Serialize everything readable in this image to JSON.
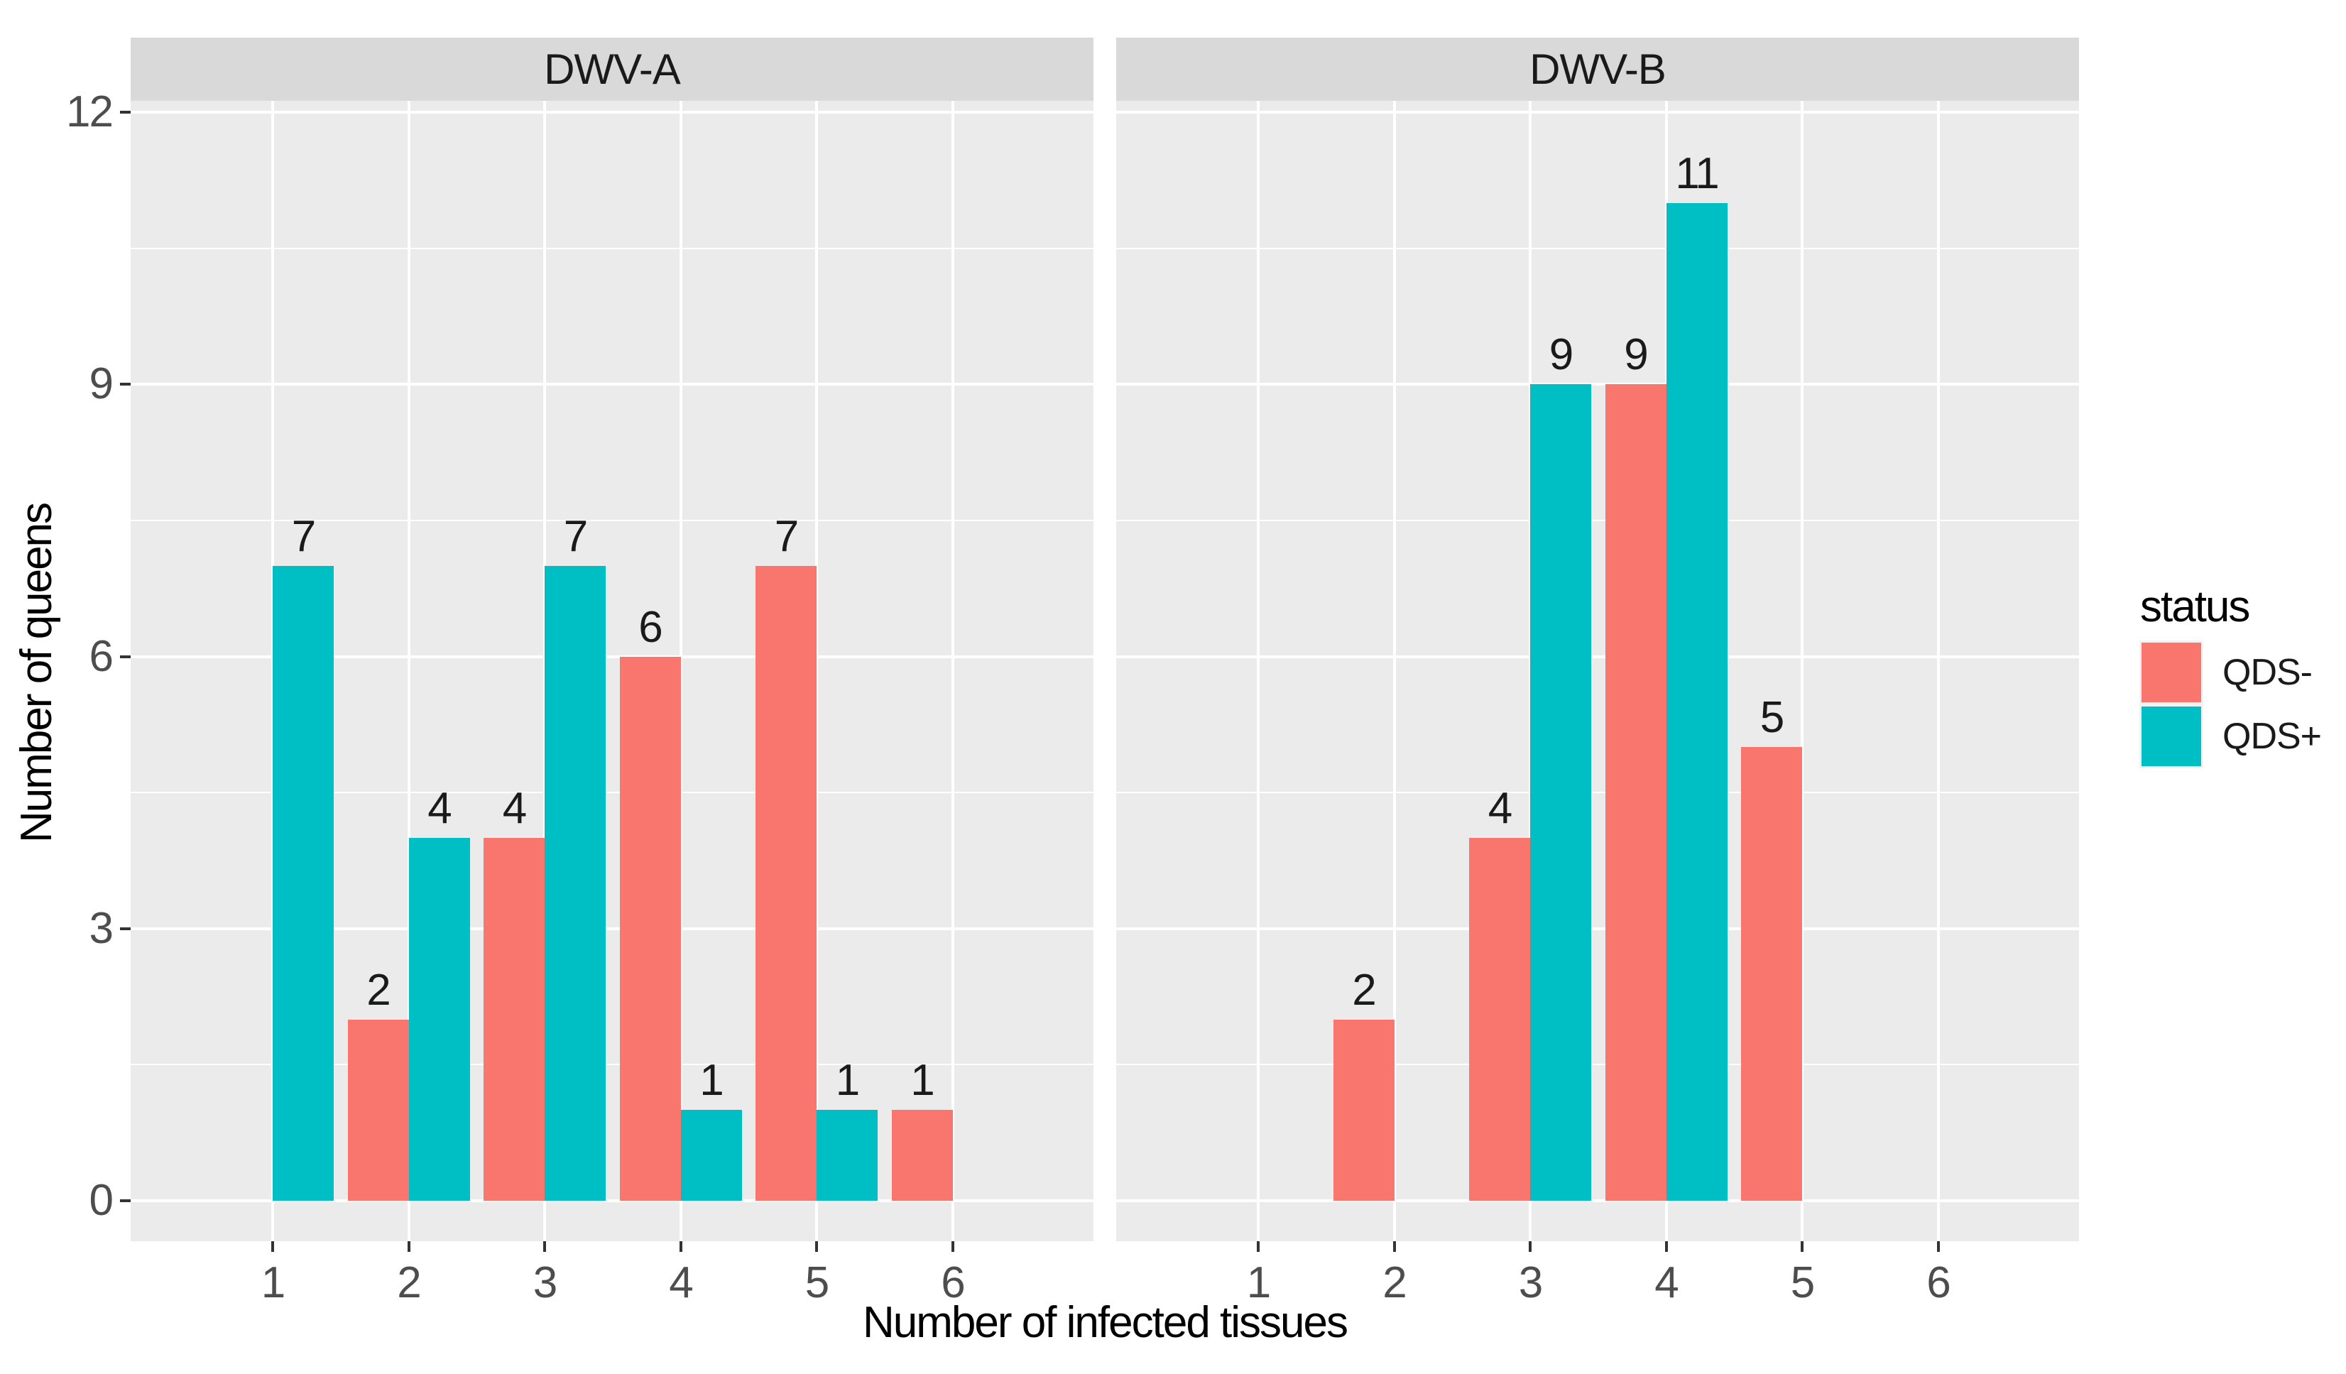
{
  "chart_data": {
    "type": "bar",
    "layout": "faceted-dodged-bar",
    "xlabel": "Number of infected tissues",
    "ylabel": "Number of queens",
    "categories": [
      "1",
      "2",
      "3",
      "4",
      "5",
      "6"
    ],
    "y_ticks": [
      "0",
      "3",
      "6",
      "9",
      "12"
    ],
    "ylim": [
      0,
      12
    ],
    "grid": "major-xy+minor-y",
    "bar_value_labels": true,
    "legend_position": "right",
    "legend": {
      "title": "status",
      "items": [
        {
          "label": "QDS-",
          "color": "#F8766D"
        },
        {
          "label": "QDS+",
          "color": "#00BFC4"
        }
      ]
    },
    "facets": [
      {
        "label": "DWV-A",
        "series": [
          {
            "name": "QDS-",
            "values": [
              null,
              2,
              4,
              6,
              7,
              1
            ]
          },
          {
            "name": "QDS+",
            "values": [
              7,
              4,
              7,
              1,
              1,
              null
            ]
          }
        ]
      },
      {
        "label": "DWV-B",
        "series": [
          {
            "name": "QDS-",
            "values": [
              null,
              2,
              4,
              9,
              5,
              null
            ]
          },
          {
            "name": "QDS+",
            "values": [
              null,
              null,
              9,
              11,
              null,
              null
            ]
          }
        ]
      }
    ]
  },
  "style": {
    "panel_bg": "#EBEBEB",
    "strip_bg": "#D9D9D9",
    "grid_color": "#FFFFFF",
    "axis_tick_color": "#333333",
    "tick_label_color": "#4D4D4D",
    "series_colors": {
      "QDS-": "#F8766D",
      "QDS+": "#00BFC4"
    }
  }
}
